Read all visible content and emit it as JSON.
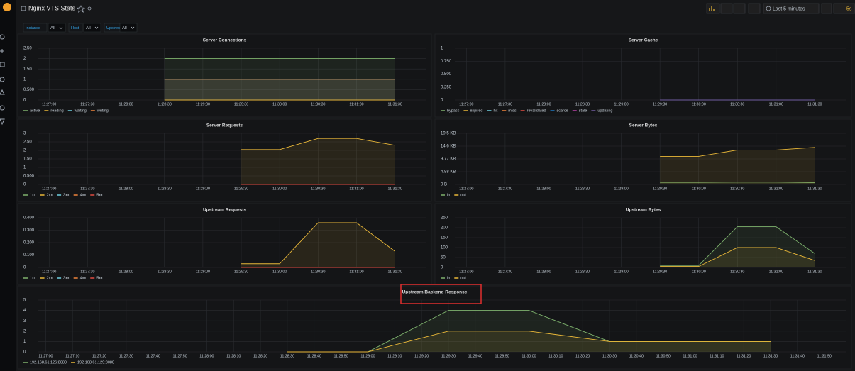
{
  "header": {
    "title": "Nginx VTS Stats",
    "time_range": "Last 5 minutes",
    "refresh": "5s"
  },
  "variables": [
    {
      "label": "Instance",
      "value": "All"
    },
    {
      "label": "Host",
      "value": "All"
    },
    {
      "label": "Upstream",
      "value": "All"
    }
  ],
  "chart_data": [
    {
      "type": "line",
      "title": "Server Connections",
      "grid": true,
      "fill": true,
      "categories": [
        "11:27:00",
        "11:27:30",
        "11:28:00",
        "11:28:30",
        "11:29:00",
        "11:29:30",
        "11:30:00",
        "11:30:30",
        "11:31:00",
        "11:31:30"
      ],
      "ylim": [
        0,
        2.5
      ],
      "yticks": [
        0,
        {
          "value": 0.5,
          "label": "0.500"
        },
        1,
        {
          "value": 1.5,
          "label": "1.50"
        },
        2,
        {
          "value": 2.5,
          "label": "2.50"
        }
      ],
      "series": [
        {
          "name": "active",
          "color": "#7eb26d",
          "values": [
            null,
            null,
            null,
            2,
            2,
            2,
            2,
            2,
            2,
            2
          ]
        },
        {
          "name": "reading",
          "color": "#eab839",
          "values": [
            null,
            null,
            null,
            0,
            0,
            0,
            0,
            0,
            0,
            0
          ]
        },
        {
          "name": "waiting",
          "color": "#6ed0e0",
          "values": [
            null,
            null,
            null,
            1,
            1,
            1,
            1,
            1,
            1,
            1
          ]
        },
        {
          "name": "writing",
          "color": "#ef843c",
          "values": [
            null,
            null,
            null,
            1,
            1,
            1,
            1,
            1,
            1,
            1
          ]
        }
      ]
    },
    {
      "type": "line",
      "title": "Server Cache",
      "grid": true,
      "fill": true,
      "categories": [
        "11:27:00",
        "11:27:30",
        "11:28:00",
        "11:28:30",
        "11:29:00",
        "11:29:30",
        "11:30:00",
        "11:30:30",
        "11:31:00",
        "11:31:30"
      ],
      "ylim": [
        0,
        1
      ],
      "yticks": [
        0,
        {
          "value": 0.25,
          "label": "0.250"
        },
        {
          "value": 0.5,
          "label": "0.500"
        },
        {
          "value": 0.75,
          "label": "0.750"
        },
        1
      ],
      "series": [
        {
          "name": "bypass",
          "color": "#7eb26d",
          "values": [
            null,
            null,
            null,
            null,
            null,
            0,
            0,
            0,
            0,
            0
          ]
        },
        {
          "name": "expired",
          "color": "#eab839",
          "values": [
            null,
            null,
            null,
            null,
            null,
            0,
            0,
            0,
            0,
            0
          ]
        },
        {
          "name": "hit",
          "color": "#6ed0e0",
          "values": [
            null,
            null,
            null,
            null,
            null,
            0,
            0,
            0,
            0,
            0
          ]
        },
        {
          "name": "miss",
          "color": "#ef843c",
          "values": [
            null,
            null,
            null,
            null,
            null,
            0,
            0,
            0,
            0,
            0
          ]
        },
        {
          "name": "revalidated",
          "color": "#e24d42",
          "values": [
            null,
            null,
            null,
            null,
            null,
            0,
            0,
            0,
            0,
            0
          ]
        },
        {
          "name": "scarce",
          "color": "#1f78c1",
          "values": [
            null,
            null,
            null,
            null,
            null,
            0,
            0,
            0,
            0,
            0
          ]
        },
        {
          "name": "stale",
          "color": "#ba43a9",
          "values": [
            null,
            null,
            null,
            null,
            null,
            0,
            0,
            0,
            0,
            0
          ]
        },
        {
          "name": "updating",
          "color": "#705da0",
          "values": [
            null,
            null,
            null,
            null,
            null,
            0,
            0,
            0,
            0,
            0
          ]
        }
      ]
    },
    {
      "type": "line",
      "title": "Server Requests",
      "grid": true,
      "fill": true,
      "categories": [
        "11:27:00",
        "11:27:30",
        "11:28:00",
        "11:28:30",
        "11:29:00",
        "11:29:30",
        "11:30:00",
        "11:30:30",
        "11:31:00",
        "11:31:30"
      ],
      "ylim": [
        0,
        3
      ],
      "yticks": [
        0,
        {
          "value": 0.5,
          "label": "0.500"
        },
        1,
        {
          "value": 1.5,
          "label": "1.50"
        },
        2,
        {
          "value": 2.5,
          "label": "2.50"
        },
        3
      ],
      "series": [
        {
          "name": "1xx",
          "color": "#7eb26d",
          "values": [
            null,
            null,
            null,
            null,
            null,
            0,
            0,
            0,
            0,
            0
          ]
        },
        {
          "name": "2xx",
          "color": "#eab839",
          "values": [
            null,
            null,
            null,
            null,
            null,
            2.05,
            2.05,
            2.7,
            2.7,
            2.3
          ]
        },
        {
          "name": "3xx",
          "color": "#6ed0e0",
          "values": [
            null,
            null,
            null,
            null,
            null,
            0,
            0,
            0,
            0,
            0
          ]
        },
        {
          "name": "4xx",
          "color": "#ef843c",
          "values": [
            null,
            null,
            null,
            null,
            null,
            0,
            0,
            0,
            0,
            0
          ]
        },
        {
          "name": "5xx",
          "color": "#e24d42",
          "values": [
            null,
            null,
            null,
            null,
            null,
            0,
            0,
            0,
            0,
            0
          ]
        }
      ]
    },
    {
      "type": "line",
      "title": "Server Bytes",
      "grid": true,
      "fill": true,
      "categories": [
        "11:27:00",
        "11:27:30",
        "11:28:00",
        "11:28:30",
        "11:29:00",
        "11:29:30",
        "11:30:00",
        "11:30:30",
        "11:31:00",
        "11:31:30"
      ],
      "ylim": [
        0,
        20000
      ],
      "yticks": [
        {
          "value": 0,
          "label": "0 B"
        },
        {
          "value": 5000,
          "label": "4.88 KB"
        },
        {
          "value": 10000,
          "label": "9.77 KB"
        },
        {
          "value": 15000,
          "label": "14.6 KB"
        },
        {
          "value": 20000,
          "label": "19.5 KB"
        }
      ],
      "series": [
        {
          "name": "in",
          "color": "#7eb26d",
          "values": [
            null,
            null,
            null,
            null,
            null,
            800,
            800,
            900,
            900,
            700
          ]
        },
        {
          "name": "out",
          "color": "#eab839",
          "values": [
            null,
            null,
            null,
            null,
            null,
            11000,
            11000,
            13500,
            13500,
            14500
          ]
        }
      ]
    },
    {
      "type": "line",
      "title": "Upstream Requests",
      "grid": true,
      "fill": true,
      "categories": [
        "11:27:00",
        "11:27:30",
        "11:28:00",
        "11:28:30",
        "11:29:00",
        "11:29:30",
        "11:30:00",
        "11:30:30",
        "11:31:00",
        "11:31:30"
      ],
      "ylim": [
        0,
        0.4
      ],
      "yticks": [
        0,
        {
          "value": 0.1,
          "label": "0.100"
        },
        {
          "value": 0.2,
          "label": "0.200"
        },
        {
          "value": 0.3,
          "label": "0.300"
        },
        {
          "value": 0.4,
          "label": "0.400"
        }
      ],
      "series": [
        {
          "name": "1xx",
          "color": "#7eb26d",
          "values": [
            null,
            null,
            null,
            null,
            null,
            0,
            0,
            0,
            0,
            0
          ]
        },
        {
          "name": "2xx",
          "color": "#eab839",
          "values": [
            null,
            null,
            null,
            null,
            null,
            0.03,
            0.03,
            0.36,
            0.36,
            0.13
          ]
        },
        {
          "name": "3xx",
          "color": "#6ed0e0",
          "values": [
            null,
            null,
            null,
            null,
            null,
            0,
            0,
            0,
            0,
            0
          ]
        },
        {
          "name": "4xx",
          "color": "#ef843c",
          "values": [
            null,
            null,
            null,
            null,
            null,
            0,
            0,
            0,
            0,
            0
          ]
        },
        {
          "name": "5xx",
          "color": "#e24d42",
          "values": [
            null,
            null,
            null,
            null,
            null,
            0,
            0,
            0,
            0,
            0
          ]
        }
      ]
    },
    {
      "type": "line",
      "title": "Upstream Bytes",
      "grid": true,
      "fill": true,
      "categories": [
        "11:27:00",
        "11:27:30",
        "11:28:00",
        "11:28:30",
        "11:29:00",
        "11:29:30",
        "11:30:00",
        "11:30:30",
        "11:31:00",
        "11:31:30"
      ],
      "ylim": [
        0,
        250
      ],
      "yticks": [
        0,
        50,
        100,
        150,
        200,
        250
      ],
      "series": [
        {
          "name": "in",
          "color": "#7eb26d",
          "values": [
            null,
            null,
            null,
            null,
            null,
            10,
            10,
            205,
            205,
            70
          ]
        },
        {
          "name": "out",
          "color": "#eab839",
          "values": [
            null,
            null,
            null,
            null,
            null,
            5,
            5,
            100,
            100,
            35
          ]
        }
      ]
    },
    {
      "type": "line",
      "title": "Upstream Backend Response",
      "grid": true,
      "fill": true,
      "categories": [
        "11:27:00",
        "11:27:10",
        "11:27:20",
        "11:27:30",
        "11:27:40",
        "11:27:50",
        "11:28:00",
        "11:28:10",
        "11:28:20",
        "11:28:30",
        "11:28:40",
        "11:28:50",
        "11:29:00",
        "11:29:10",
        "11:29:20",
        "11:29:30",
        "11:29:40",
        "11:29:50",
        "11:30:00",
        "11:30:10",
        "11:30:20",
        "11:30:30",
        "11:30:40",
        "11:30:50",
        "11:31:00",
        "11:31:10",
        "11:31:20",
        "11:31:30",
        "11:31:40",
        "11:31:50"
      ],
      "ylim": [
        0,
        5
      ],
      "yticks": [
        0,
        1,
        2,
        3,
        4,
        5
      ],
      "series": [
        {
          "name": "192.168.61.126:8080",
          "color": "#7eb26d",
          "values": [
            null,
            null,
            null,
            null,
            null,
            null,
            null,
            null,
            null,
            0,
            0,
            0,
            0,
            1.33,
            2.67,
            4,
            4,
            4,
            4,
            3,
            2,
            1,
            1,
            1,
            1,
            1,
            1,
            1,
            null,
            null
          ]
        },
        {
          "name": "192.168.61.129:8080",
          "color": "#eab839",
          "values": [
            null,
            null,
            null,
            null,
            null,
            null,
            null,
            null,
            null,
            0,
            0,
            0,
            0,
            0.67,
            1.33,
            2,
            2,
            2,
            2,
            1.67,
            1.33,
            1,
            1,
            1,
            1,
            1,
            1,
            1,
            null,
            null
          ]
        }
      ]
    }
  ]
}
